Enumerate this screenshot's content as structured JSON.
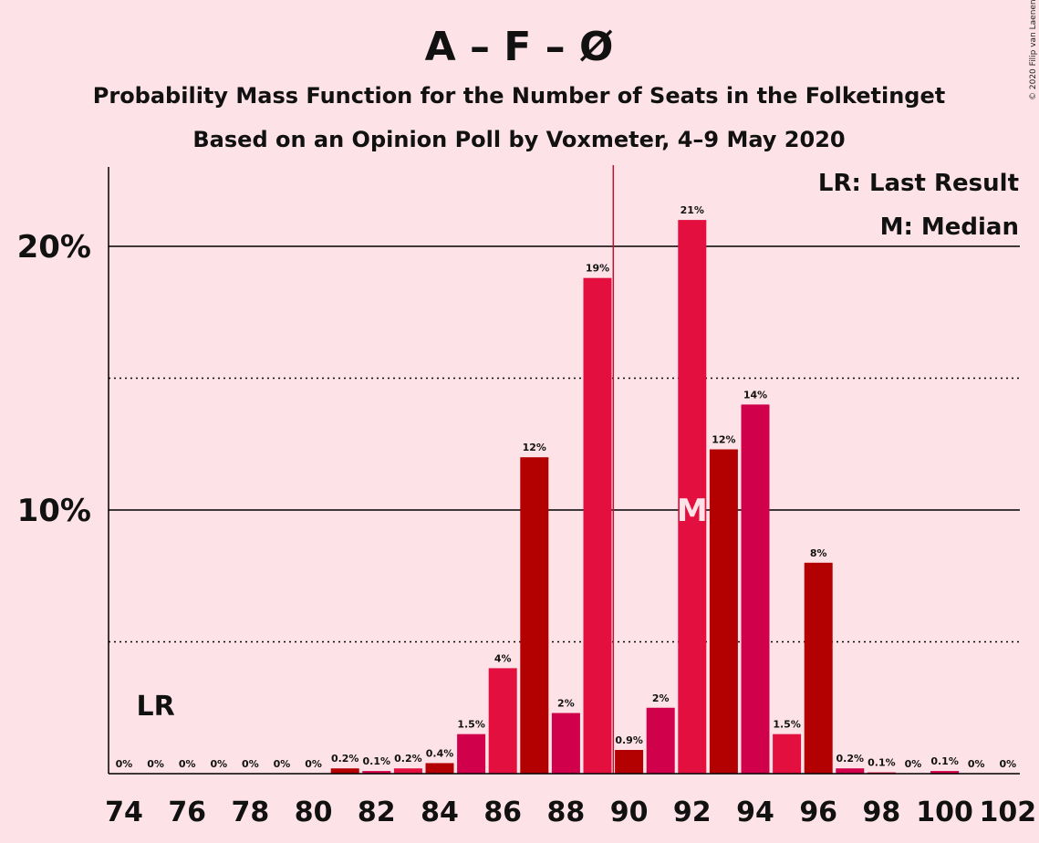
{
  "chart_data": {
    "type": "bar",
    "title": "A – F – Ø",
    "subtitle": "Probability Mass Function for the Number of Seats in the Folketinget",
    "subtitle2": "Based on an Opinion Poll by Voxmeter, 4–9 May 2020",
    "copyright": "© 2020 Filip van Laenen",
    "x": [
      74,
      75,
      76,
      77,
      78,
      79,
      80,
      81,
      82,
      83,
      84,
      85,
      86,
      87,
      88,
      89,
      90,
      91,
      92,
      93,
      94,
      95,
      96,
      97,
      98,
      99,
      100,
      101,
      102
    ],
    "values": [
      0,
      0,
      0,
      0,
      0,
      0,
      0,
      0.2,
      0.1,
      0.2,
      0.4,
      1.5,
      4,
      12,
      2.3,
      18.8,
      0.9,
      2.5,
      21,
      12.3,
      14,
      1.5,
      8,
      0.2,
      0.05,
      0,
      0.1,
      0,
      0
    ],
    "value_labels": [
      "0%",
      "0%",
      "0%",
      "0%",
      "0%",
      "0%",
      "0%",
      "0.2%",
      "0.1%",
      "0.2%",
      "0.4%",
      "1.5%",
      "4%",
      "12%",
      "2%",
      "19%",
      "0.9%",
      "2%",
      "21%",
      "12%",
      "14%",
      "1.5%",
      "8%",
      "0.2%",
      "0.1%",
      "0%",
      "0.1%",
      "0%",
      "0%"
    ],
    "x_ticks": [
      74,
      76,
      78,
      80,
      82,
      84,
      86,
      88,
      90,
      92,
      94,
      96,
      98,
      100,
      102
    ],
    "y_ticks": [
      {
        "value": 10,
        "label": "10%"
      },
      {
        "value": 20,
        "label": "20%"
      }
    ],
    "ylim": [
      0,
      23
    ],
    "dotted_gridlines": [
      5,
      15
    ],
    "last_result": {
      "seat": 75,
      "label": "LR"
    },
    "median": {
      "seat": 92,
      "label": "M"
    },
    "majority_line": 90,
    "legend": {
      "last_result": "LR: Last Result",
      "median": "M: Median",
      "placement": "top-right"
    },
    "colors": {
      "background": "#fde3e7",
      "bar_palette": [
        "#e3103f",
        "#b30000",
        "#d0004a"
      ],
      "majority_line": "#c8102e",
      "grid": "#000000"
    }
  }
}
